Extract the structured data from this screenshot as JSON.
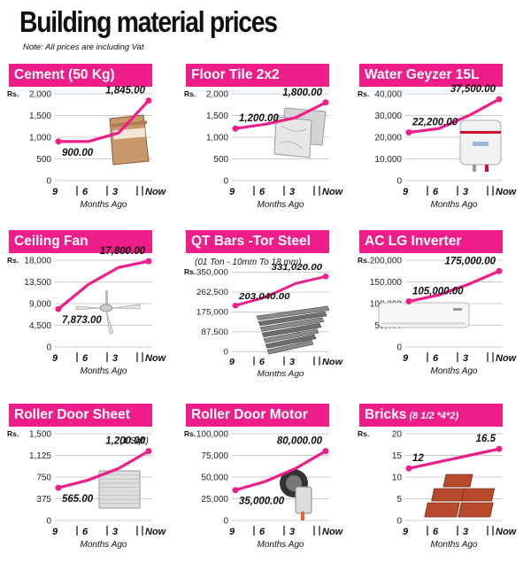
{
  "title": "Building material prices",
  "note": "Note: All prices are including Vat",
  "colors": {
    "accent": "#ee1d8a",
    "grid": "#bbbbbb"
  },
  "chart_data": [
    {
      "type": "line",
      "title": "Cement  (50 Kg)",
      "title_suffix": "",
      "subtitle": "",
      "ylabel": "Rs.",
      "ylim": [
        0,
        2000
      ],
      "yticks": [
        "2,000",
        "1,500",
        "1,000",
        "500",
        "0"
      ],
      "categories": [
        "9",
        "6",
        "3",
        "Now"
      ],
      "xlabel": "Months Ago",
      "values": [
        900,
        900,
        1100,
        1845
      ],
      "data_labels": [
        {
          "index": 0,
          "text": "900.00"
        },
        {
          "index": 3,
          "text": "1,845.00"
        }
      ],
      "image": "cement-bag-icon"
    },
    {
      "type": "line",
      "title": "Floor Tile  2x2",
      "title_suffix": "",
      "subtitle": "",
      "ylabel": "Rs.",
      "ylim": [
        0,
        2000
      ],
      "yticks": [
        "2,000",
        "1,500",
        "1,000",
        "500",
        "0"
      ],
      "categories": [
        "9",
        "6",
        "3",
        "Now"
      ],
      "xlabel": "Months Ago",
      "values": [
        1200,
        1300,
        1450,
        1800
      ],
      "data_labels": [
        {
          "index": 0,
          "text": "1,200.00"
        },
        {
          "index": 3,
          "text": "1,800.00"
        }
      ],
      "image": "floor-tiles-icon"
    },
    {
      "type": "line",
      "title": "Water Geyzer 15L",
      "title_suffix": "",
      "subtitle": "",
      "ylabel": "Rs.",
      "ylim": [
        0,
        40000
      ],
      "yticks": [
        "40,000",
        "30,000",
        "20,000",
        "10,000",
        "0"
      ],
      "categories": [
        "9",
        "6",
        "3",
        "Now"
      ],
      "xlabel": "Months Ago",
      "values": [
        22200,
        24000,
        30000,
        37500
      ],
      "data_labels": [
        {
          "index": 0,
          "text": "22,200.00"
        },
        {
          "index": 3,
          "text": "37,500.00"
        }
      ],
      "image": "water-heater-icon"
    },
    {
      "type": "line",
      "title": "Ceiling Fan",
      "title_suffix": "",
      "subtitle": "",
      "ylabel": "Rs.",
      "ylim": [
        0,
        18000
      ],
      "yticks": [
        "18,000",
        "13,500",
        "9,000",
        "4,500",
        "0"
      ],
      "categories": [
        "9",
        "6",
        "3",
        "Now"
      ],
      "xlabel": "Months Ago",
      "values": [
        7873,
        13000,
        16500,
        17800
      ],
      "data_labels": [
        {
          "index": 0,
          "text": "7,873.00"
        },
        {
          "index": 3,
          "text": "17,800.00"
        }
      ],
      "image": "ceiling-fan-icon"
    },
    {
      "type": "line",
      "title": "QT Bars -Tor Steel",
      "title_suffix": "",
      "subtitle": "(01 Ton - 10mm To 18 mm)",
      "ylabel": "Rs.",
      "ylim": [
        0,
        350000
      ],
      "yticks": [
        "350,000",
        "262,500",
        "175,000",
        "87,500",
        "0"
      ],
      "categories": [
        "9",
        "6",
        "3",
        "Now"
      ],
      "xlabel": "Months Ago",
      "values": [
        203040,
        240000,
        300000,
        331020
      ],
      "data_labels": [
        {
          "index": 0,
          "text": "203,040.00"
        },
        {
          "index": 3,
          "text": "331,020.00"
        }
      ],
      "image": "steel-bars-icon"
    },
    {
      "type": "line",
      "title": "AC LG Inverter",
      "title_suffix": "",
      "subtitle": "",
      "ylabel": "Rs.",
      "ylim": [
        0,
        200000
      ],
      "yticks": [
        "200,000",
        "150,000",
        "100,000",
        "50,000",
        "0"
      ],
      "categories": [
        "9",
        "6",
        "3",
        "Now"
      ],
      "xlabel": "Months Ago",
      "values": [
        105000,
        120000,
        145000,
        175000
      ],
      "data_labels": [
        {
          "index": 0,
          "text": "105,000.00"
        },
        {
          "index": 3,
          "text": "175,000.00"
        }
      ],
      "image": "air-conditioner-icon"
    },
    {
      "type": "line",
      "title": "Roller Door Sheet",
      "title_suffix": "",
      "subtitle": "(1 Sqft)",
      "ylabel": "Rs.",
      "ylim": [
        0,
        1500
      ],
      "yticks": [
        "1,500",
        "1,125",
        "750",
        "375",
        "0"
      ],
      "categories": [
        "9",
        "6",
        "3",
        "Now"
      ],
      "xlabel": "Months Ago",
      "values": [
        565,
        700,
        900,
        1200
      ],
      "data_labels": [
        {
          "index": 0,
          "text": "565.00"
        },
        {
          "index": 3,
          "text": "1,200.00"
        }
      ],
      "image": "roller-door-sheet-icon"
    },
    {
      "type": "line",
      "title": "Roller Door Motor",
      "title_suffix": "",
      "subtitle": "",
      "ylabel": "Rs.",
      "ylim": [
        0,
        100000
      ],
      "yticks": [
        "100,000",
        "75,000",
        "50,000",
        "25,000",
        "0"
      ],
      "categories": [
        "9",
        "6",
        "3",
        "Now"
      ],
      "xlabel": "Months Ago",
      "values": [
        35000,
        45000,
        60000,
        80000
      ],
      "data_labels": [
        {
          "index": 0,
          "text": "35,000.00"
        },
        {
          "index": 3,
          "text": "80,000.00"
        }
      ],
      "image": "roller-door-motor-icon"
    },
    {
      "type": "line",
      "title": "Bricks",
      "title_suffix": "(8 1/2 *4*2)",
      "subtitle": "",
      "ylabel": "Rs.",
      "ylim": [
        0,
        20
      ],
      "yticks": [
        "20",
        "15",
        "10",
        "5",
        "0"
      ],
      "categories": [
        "9",
        "6",
        "3",
        "Now"
      ],
      "xlabel": "Months Ago",
      "values": [
        12,
        13.5,
        15,
        16.5
      ],
      "data_labels": [
        {
          "index": 0,
          "text": "12"
        },
        {
          "index": 3,
          "text": "16.5"
        }
      ],
      "image": "bricks-icon"
    }
  ]
}
